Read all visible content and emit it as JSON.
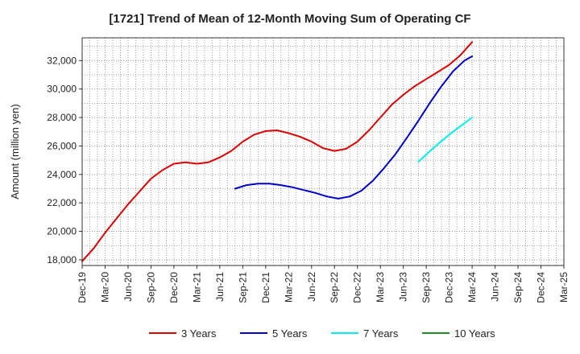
{
  "chart_data": {
    "type": "line",
    "title": "[1721]  Trend of Mean of 12-Month Moving Sum of Operating CF",
    "xlabel": "",
    "ylabel": "Amount (million yen)",
    "ylim": [
      17600,
      33600
    ],
    "yticks": [
      18000,
      20000,
      22000,
      24000,
      26000,
      28000,
      30000,
      32000
    ],
    "ytick_labels": [
      "18,000",
      "20,000",
      "22,000",
      "24,000",
      "26,000",
      "28,000",
      "30,000",
      "32,000"
    ],
    "x_range_months": [
      0,
      63
    ],
    "xticks": [
      0,
      3,
      6,
      9,
      12,
      15,
      18,
      21,
      24,
      27,
      30,
      33,
      36,
      39,
      42,
      45,
      48,
      51,
      54,
      57,
      60,
      63
    ],
    "xtick_labels": [
      "Dec-19",
      "Mar-20",
      "Jun-20",
      "Sep-20",
      "Dec-20",
      "Mar-21",
      "Jun-21",
      "Sep-21",
      "Dec-21",
      "Mar-22",
      "Jun-22",
      "Sep-22",
      "Dec-22",
      "Mar-23",
      "Jun-23",
      "Sep-23",
      "Dec-23",
      "Mar-24",
      "Jun-24",
      "Sep-24",
      "Dec-24",
      "Mar-25"
    ],
    "grid": true,
    "legend_position": "bottom",
    "series": [
      {
        "name": "3 Years",
        "color": "#dd0000",
        "x": [
          0,
          1.5,
          3,
          4.5,
          6,
          7.5,
          9,
          10.5,
          12,
          13.5,
          15,
          16.5,
          18,
          19.5,
          21,
          22.5,
          24,
          25.5,
          27,
          28.5,
          30,
          31.5,
          33,
          34.5,
          36,
          37.5,
          39,
          40.5,
          42,
          43.5,
          45,
          46.5,
          48,
          49.5,
          51
        ],
        "values": [
          17900,
          18800,
          19900,
          20900,
          21900,
          22800,
          23700,
          24300,
          24750,
          24850,
          24750,
          24850,
          25200,
          25650,
          26300,
          26800,
          27050,
          27100,
          26900,
          26650,
          26300,
          25850,
          25650,
          25800,
          26300,
          27100,
          28000,
          28900,
          29600,
          30200,
          30700,
          31200,
          31700,
          32400,
          33300
        ]
      },
      {
        "name": "5 Years",
        "color": "#0000cc",
        "x": [
          20,
          21.5,
          23,
          24.5,
          26,
          27.5,
          29,
          30.5,
          32,
          33.5,
          35,
          36.5,
          38,
          39.5,
          41,
          42.5,
          44,
          45.5,
          47,
          48.5,
          50,
          51
        ],
        "values": [
          23000,
          23250,
          23350,
          23350,
          23250,
          23100,
          22900,
          22700,
          22450,
          22300,
          22450,
          22850,
          23550,
          24450,
          25450,
          26600,
          27800,
          29050,
          30200,
          31250,
          32000,
          32300
        ]
      },
      {
        "name": "7 Years",
        "color": "#00eeee",
        "x": [
          44,
          45.5,
          47,
          48.5,
          50,
          51
        ],
        "values": [
          24900,
          25650,
          26350,
          27000,
          27600,
          28000
        ]
      },
      {
        "name": "10 Years",
        "color": "#228b22",
        "x": [],
        "values": []
      }
    ]
  }
}
